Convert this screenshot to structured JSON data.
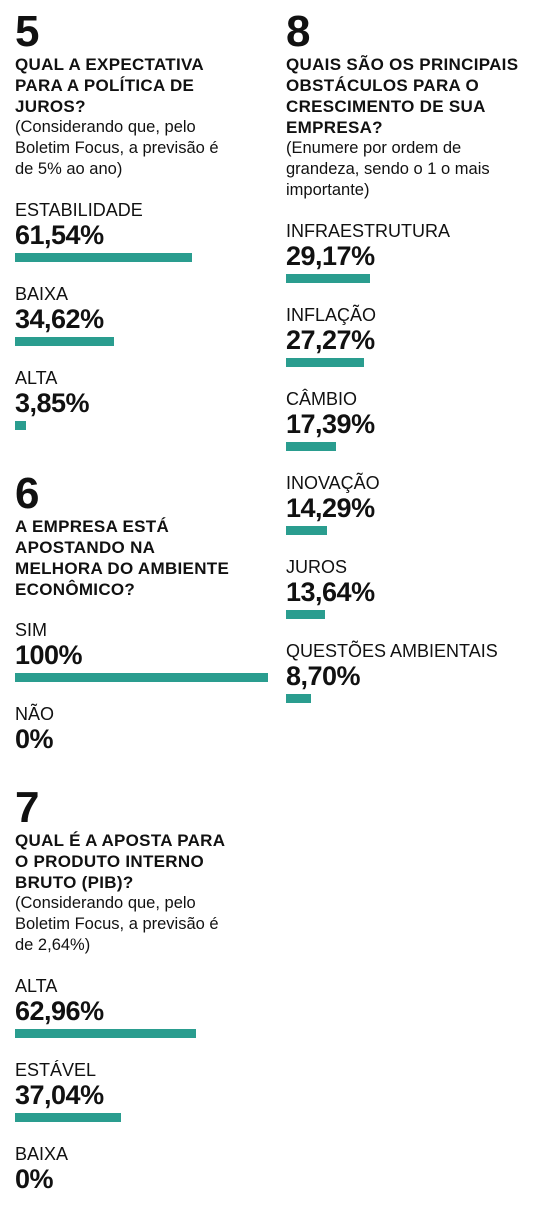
{
  "accent": "#2a9d8f",
  "q5": {
    "number": "5",
    "title": "QUAL A EXPECTATIVA\nPARA A POLÍTICA DE\nJUROS?",
    "note": "(Considerando que, pelo\nBoletim Focus, a previsão é\nde 5% ao ano)"
  },
  "q6": {
    "number": "6",
    "title": "A EMPRESA ESTÁ\nAPOSTANDO NA\nMELHORA DO AMBIENTE\nECONÔMICO?",
    "note": ""
  },
  "q7": {
    "number": "7",
    "title": "QUAL É A APOSTA PARA\nO PRODUTO INTERNO\nBRUTO (PIB)?",
    "note": "(Considerando que, pelo\nBoletim Focus, a previsão é\nde 2,64%)"
  },
  "q8": {
    "number": "8",
    "title": "QUAIS SÃO OS PRINCIPAIS\nOBSTÁCULOS PARA O\nCRESCIMENTO DE SUA\nEMPRESA?",
    "note": "(Enumere por ordem de\ngrandeza, sendo o 1 o mais\nimportante)"
  },
  "chart_data": [
    {
      "type": "bar",
      "title": "QUAL A EXPECTATIVA PARA A POLÍTICA DE JUROS?",
      "categories": [
        "ESTABILIDADE",
        "BAIXA",
        "ALTA"
      ],
      "values": [
        61.54,
        34.62,
        3.85
      ],
      "value_labels": [
        "61,54%",
        "34,62%",
        "3,85%"
      ],
      "ylim": [
        0,
        100
      ]
    },
    {
      "type": "bar",
      "title": "A EMPRESA ESTÁ APOSTANDO NA MELHORA DO AMBIENTE ECONÔMICO?",
      "categories": [
        "SIM",
        "NÃO"
      ],
      "values": [
        100,
        0
      ],
      "value_labels": [
        "100%",
        "0%"
      ],
      "ylim": [
        0,
        100
      ]
    },
    {
      "type": "bar",
      "title": "QUAL É A APOSTA PARA O PRODUTO INTERNO BRUTO (PIB)?",
      "categories": [
        "ALTA",
        "ESTÁVEL",
        "BAIXA"
      ],
      "values": [
        62.96,
        37.04,
        0
      ],
      "value_labels": [
        "62,96%",
        "37,04%",
        "0%"
      ],
      "ylim": [
        0,
        100
      ]
    },
    {
      "type": "bar",
      "title": "QUAIS SÃO OS PRINCIPAIS OBSTÁCULOS PARA O CRESCIMENTO DE SUA EMPRESA?",
      "categories": [
        "INFRAESTRUTURA",
        "INFLAÇÃO",
        "CÂMBIO",
        "INOVAÇÃO",
        "JUROS",
        "QUESTÕES AMBIENTAIS"
      ],
      "values": [
        29.17,
        27.27,
        17.39,
        14.29,
        13.64,
        8.7
      ],
      "value_labels": [
        "29,17%",
        "27,27%",
        "17,39%",
        "14,29%",
        "13,64%",
        "8,70%"
      ],
      "ylim": [
        0,
        100
      ]
    }
  ]
}
